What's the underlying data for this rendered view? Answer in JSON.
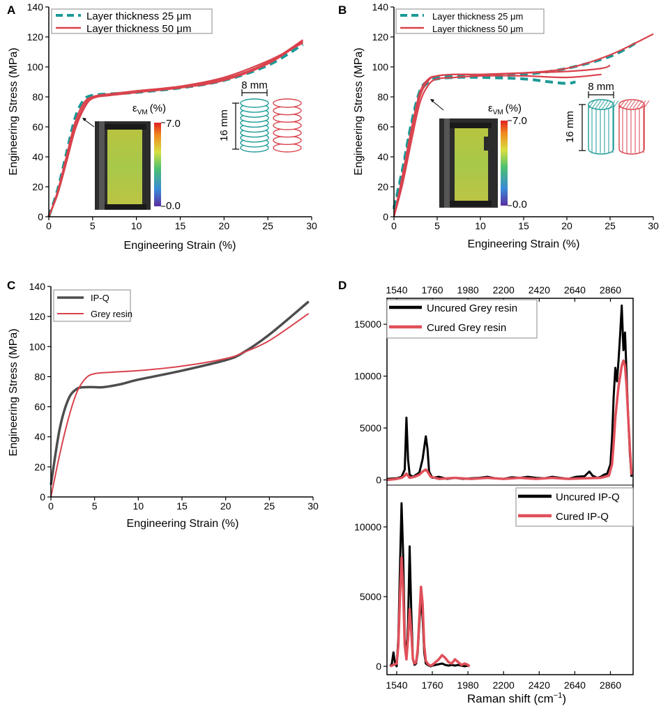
{
  "colors": {
    "teal": "#1a9a96",
    "red": "#d9424c",
    "grey": "#4d4d4d",
    "black": "#000000",
    "pink": "#e0505a"
  },
  "panels": {
    "A": {
      "label": "A",
      "xlabel": "Engineering Strain (%)",
      "ylabel": "Engineering Stress (MPa)",
      "legend": [
        "Layer thickness 25 μm",
        "Layer thickness 50 μm"
      ],
      "colorbar": {
        "title_main": "ε",
        "title_sub": "VM",
        "title_unit": "(%)",
        "max": "7.0",
        "min": "0.0"
      },
      "dim_width": "8 mm",
      "dim_height": "16 mm"
    },
    "B": {
      "label": "B",
      "xlabel": "Engineering Strain (%)",
      "ylabel": "Engineering Stress (MPa)",
      "legend": [
        "Layer thickness 25 μm",
        "Layer thickness 50 μm"
      ],
      "colorbar": {
        "title_main": "ε",
        "title_sub": "VM",
        "title_unit": "(%)",
        "max": "7.0",
        "min": "0.0"
      },
      "dim_width": "8 mm",
      "dim_height": "16 mm"
    },
    "C": {
      "label": "C",
      "xlabel": "Engineering Strain (%)",
      "ylabel": "Engineering Stress (MPa)",
      "legend": [
        "IP-Q",
        "Grey resin"
      ]
    },
    "D": {
      "label": "D",
      "xlabel": "Raman shift (cm",
      "xlabel_sup": "−1",
      "xlabel_end": ")",
      "legend_top": [
        "Uncured Grey resin",
        "Cured Grey resin"
      ],
      "legend_bottom": [
        "Uncured IP-Q",
        "Cured IP-Q"
      ]
    }
  },
  "chart_data": [
    {
      "panel": "A",
      "type": "line",
      "xlim": [
        0,
        30
      ],
      "ylim": [
        0,
        140
      ],
      "xticks": [
        0,
        5,
        10,
        15,
        20,
        25,
        30
      ],
      "yticks": [
        0,
        20,
        40,
        60,
        80,
        100,
        120,
        140
      ],
      "series": [
        {
          "name": "Layer thickness 25 μm",
          "style": "dashed",
          "color": "teal",
          "x": [
            0,
            1,
            2,
            3,
            4,
            5,
            7,
            10,
            15,
            20,
            25,
            29
          ],
          "y": [
            0,
            18,
            42,
            66,
            78,
            81,
            82,
            83,
            86,
            91,
            101,
            115
          ]
        },
        {
          "name": "Layer thickness 50 μm",
          "style": "solid",
          "color": "red",
          "x": [
            0,
            1,
            2,
            3,
            4,
            5,
            7,
            10,
            15,
            20,
            25,
            29
          ],
          "y": [
            0,
            16,
            38,
            60,
            74,
            80,
            82,
            84,
            87,
            92,
            103,
            118
          ]
        },
        {
          "name": "Layer thickness 50 μm",
          "style": "solid",
          "color": "red",
          "x": [
            0,
            1,
            2,
            3,
            4,
            5,
            7,
            10,
            15,
            20,
            25,
            29
          ],
          "y": [
            0,
            17,
            40,
            63,
            76,
            80,
            81,
            83,
            86,
            91,
            102,
            117
          ]
        },
        {
          "name": "Layer thickness 50 μm",
          "style": "solid",
          "color": "red",
          "x": [
            0,
            1,
            2,
            3,
            4,
            5,
            7,
            10,
            15,
            20,
            25,
            29
          ],
          "y": [
            0,
            15,
            36,
            58,
            72,
            79,
            81,
            83,
            87,
            93,
            104,
            116
          ]
        }
      ]
    },
    {
      "panel": "B",
      "type": "line",
      "xlim": [
        0,
        30
      ],
      "ylim": [
        0,
        140
      ],
      "xticks": [
        0,
        5,
        10,
        15,
        20,
        25,
        30
      ],
      "yticks": [
        0,
        20,
        40,
        60,
        80,
        100,
        120,
        140
      ],
      "series": [
        {
          "name": "Layer thickness 25 μm",
          "style": "dashed",
          "color": "teal",
          "x": [
            0,
            1,
            2,
            3,
            4,
            5,
            7,
            10,
            15,
            18,
            20,
            21
          ],
          "y": [
            5,
            30,
            60,
            82,
            90,
            92,
            93,
            93,
            92,
            90,
            89,
            90
          ]
        },
        {
          "name": "Layer thickness 25 μm",
          "style": "dashed",
          "color": "teal",
          "x": [
            0,
            1,
            2,
            3,
            4,
            5,
            7,
            10,
            15,
            20,
            25,
            28
          ],
          "y": [
            6,
            32,
            62,
            84,
            91,
            93,
            94,
            94,
            95,
            99,
            107,
            116
          ]
        },
        {
          "name": "Layer thickness 50 μm",
          "style": "solid",
          "color": "red",
          "x": [
            0,
            1,
            2,
            3,
            4,
            5,
            7,
            10,
            15,
            20,
            25,
            30
          ],
          "y": [
            0,
            25,
            55,
            80,
            91,
            94,
            95,
            95,
            96,
            99,
            108,
            122
          ]
        },
        {
          "name": "Layer thickness 50 μm",
          "style": "solid",
          "color": "red",
          "x": [
            0,
            1,
            2,
            3,
            4,
            5,
            7,
            10,
            15,
            20,
            24,
            25
          ],
          "y": [
            0,
            28,
            58,
            83,
            92,
            94,
            95,
            95,
            96,
            97,
            99,
            101
          ]
        },
        {
          "name": "Layer thickness 50 μm",
          "style": "solid",
          "color": "red",
          "x": [
            0,
            1,
            2,
            3,
            4,
            5,
            7,
            10,
            15,
            20,
            24
          ],
          "y": [
            0,
            22,
            50,
            76,
            88,
            92,
            93,
            94,
            94,
            93,
            95
          ]
        }
      ]
    },
    {
      "panel": "C",
      "type": "line",
      "xlim": [
        0,
        30
      ],
      "ylim": [
        0,
        140
      ],
      "xticks": [
        0,
        5,
        10,
        15,
        20,
        25,
        30
      ],
      "yticks": [
        0,
        20,
        40,
        60,
        80,
        100,
        120,
        140
      ],
      "series": [
        {
          "name": "IP-Q",
          "color": "grey",
          "x": [
            0,
            1,
            2,
            3,
            4,
            5,
            6,
            8,
            10,
            15,
            20,
            22,
            25,
            29.5
          ],
          "y": [
            8,
            45,
            65,
            72,
            73,
            73,
            73,
            75,
            78,
            84,
            91,
            96,
            108,
            130
          ]
        },
        {
          "name": "Grey resin",
          "color": "red",
          "x": [
            0,
            1,
            2,
            3,
            4,
            5,
            7,
            10,
            15,
            20,
            22,
            25,
            29.5
          ],
          "y": [
            0,
            28,
            52,
            70,
            79,
            82,
            83,
            84,
            87,
            92,
            96,
            104,
            122
          ]
        }
      ]
    },
    {
      "panel": "D-top",
      "type": "line",
      "xlim": [
        1480,
        3000
      ],
      "ylim": [
        -500,
        17500
      ],
      "xticks": [
        1540,
        1760,
        1980,
        2200,
        2420,
        2640,
        2860
      ],
      "yticks": [
        0,
        5000,
        10000,
        15000
      ],
      "series": [
        {
          "name": "Uncured Grey resin",
          "color": "black",
          "x": [
            1480,
            1540,
            1570,
            1590,
            1600,
            1610,
            1620,
            1640,
            1650,
            1660,
            1670,
            1680,
            1700,
            1720,
            1730,
            1740,
            1760,
            1800,
            1850,
            1900,
            1950,
            2000,
            2050,
            2100,
            2150,
            2200,
            2250,
            2300,
            2350,
            2400,
            2450,
            2500,
            2550,
            2600,
            2650,
            2700,
            2730,
            2750,
            2780,
            2800,
            2820,
            2840,
            2860,
            2870,
            2880,
            2890,
            2900,
            2910,
            2920,
            2930,
            2940,
            2950,
            2960,
            2970,
            2980,
            2990
          ],
          "y": [
            100,
            150,
            300,
            1000,
            6000,
            2000,
            500,
            300,
            400,
            500,
            600,
            700,
            2000,
            4200,
            3000,
            800,
            200,
            300,
            100,
            200,
            100,
            150,
            200,
            300,
            150,
            100,
            250,
            200,
            300,
            200,
            150,
            300,
            200,
            100,
            300,
            350,
            800,
            400,
            200,
            300,
            500,
            600,
            1500,
            4000,
            8000,
            10800,
            9500,
            11500,
            14000,
            16800,
            12500,
            14200,
            10000,
            6000,
            2500,
            300
          ]
        },
        {
          "name": "Cured Grey resin",
          "color": "pink",
          "x": [
            1480,
            1540,
            1570,
            1590,
            1600,
            1610,
            1620,
            1650,
            1680,
            1700,
            1720,
            1730,
            1750,
            1800,
            1900,
            2000,
            2100,
            2200,
            2300,
            2400,
            2500,
            2600,
            2700,
            2800,
            2850,
            2870,
            2880,
            2890,
            2900,
            2910,
            2920,
            2930,
            2940,
            2950,
            2960,
            2970,
            2980,
            2990
          ],
          "y": [
            0,
            100,
            200,
            400,
            600,
            400,
            200,
            300,
            500,
            800,
            1000,
            800,
            300,
            100,
            200,
            100,
            200,
            100,
            200,
            100,
            200,
            100,
            150,
            200,
            400,
            1500,
            3500,
            6000,
            7500,
            9000,
            10000,
            11000,
            11500,
            11000,
            9000,
            6000,
            3000,
            500
          ]
        }
      ]
    },
    {
      "panel": "D-bottom",
      "type": "line",
      "xlim": [
        1480,
        3000
      ],
      "ylim": [
        -600,
        13000
      ],
      "xticks": [
        1540,
        1760,
        1980,
        2200,
        2420,
        2640,
        2860
      ],
      "yticks": [
        0,
        5000,
        10000
      ],
      "series": [
        {
          "name": "Uncured IP-Q",
          "color": "black",
          "x": [
            1500,
            1510,
            1520,
            1530,
            1540,
            1550,
            1560,
            1570,
            1580,
            1590,
            1600,
            1610,
            1620,
            1630,
            1640,
            1650,
            1660,
            1670,
            1680,
            1690,
            1700,
            1710,
            1720,
            1730,
            1740,
            1750,
            1760,
            1780,
            1800,
            1820,
            1840,
            1860,
            1880,
            1900,
            1920,
            1940,
            1960,
            1980,
            1990
          ],
          "y": [
            0,
            200,
            1000,
            200,
            0,
            2000,
            7000,
            11700,
            8000,
            2000,
            500,
            3000,
            8600,
            4000,
            500,
            100,
            200,
            1000,
            3000,
            4900,
            3500,
            1000,
            200,
            100,
            50,
            0,
            50,
            100,
            150,
            200,
            100,
            50,
            100,
            50,
            100,
            50,
            0,
            50,
            0
          ]
        },
        {
          "name": "Cured IP-Q",
          "color": "pink",
          "x": [
            1500,
            1520,
            1540,
            1550,
            1560,
            1570,
            1580,
            1590,
            1600,
            1610,
            1620,
            1630,
            1640,
            1650,
            1660,
            1670,
            1680,
            1690,
            1700,
            1710,
            1720,
            1730,
            1740,
            1750,
            1760,
            1780,
            1800,
            1820,
            1840,
            1860,
            1880,
            1900,
            1920,
            1940,
            1960,
            1980,
            1990
          ],
          "y": [
            0,
            100,
            200,
            1500,
            5000,
            7800,
            5500,
            1500,
            500,
            2000,
            4100,
            2500,
            500,
            200,
            300,
            1200,
            3500,
            5700,
            4500,
            1500,
            400,
            200,
            100,
            50,
            100,
            300,
            500,
            800,
            600,
            300,
            200,
            500,
            300,
            100,
            200,
            100,
            0
          ]
        }
      ]
    }
  ]
}
